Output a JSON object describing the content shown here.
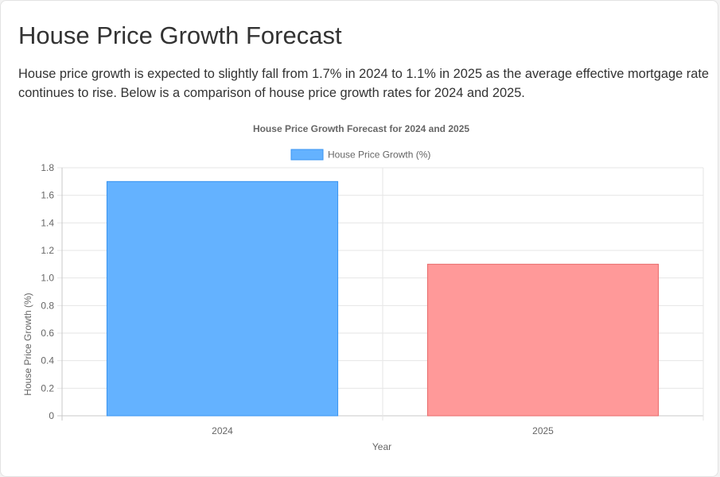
{
  "page": {
    "title": "House Price Growth Forecast",
    "description": "House price growth is expected to slightly fall from 1.7% in 2024 to 1.1% in 2025 as the average effective mortgage rate continues to rise. Below is a comparison of house price growth rates for 2024 and 2025."
  },
  "chart_data": {
    "type": "bar",
    "title": "House Price Growth Forecast for 2024 and 2025",
    "xlabel": "Year",
    "ylabel": "House Price Growth (%)",
    "categories": [
      "2024",
      "2025"
    ],
    "series": [
      {
        "name": "House Price Growth (%)",
        "values": [
          1.7,
          1.1
        ]
      }
    ],
    "bar_colors": [
      "#64b2ff",
      "#ff9999"
    ],
    "bar_border_colors": [
      "#3a94f0",
      "#e86a6a"
    ],
    "ylim": [
      0,
      1.8
    ],
    "yticks": [
      "0",
      "0.2",
      "0.4",
      "0.6",
      "0.8",
      "1.0",
      "1.2",
      "1.4",
      "1.6",
      "1.8"
    ],
    "grid": true,
    "legend_position": "top"
  }
}
